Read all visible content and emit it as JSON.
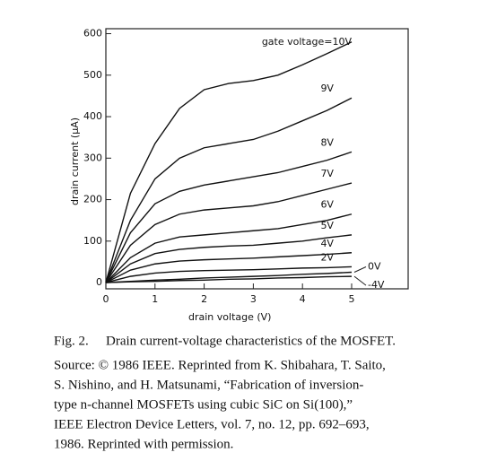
{
  "chart_data": {
    "type": "line",
    "x_label": "drain voltage (V)",
    "y_label": "drain current (μA)",
    "x": [
      0,
      0.5,
      1,
      1.5,
      2,
      2.5,
      3,
      3.5,
      4,
      4.5,
      5
    ],
    "xlim": [
      0,
      6.15
    ],
    "xticks": [
      0,
      1,
      2,
      3,
      4,
      5
    ],
    "ylim": [
      -15,
      612
    ],
    "yticks": [
      0,
      100,
      200,
      300,
      400,
      500,
      600
    ],
    "series": [
      {
        "name": "gate voltage=10V",
        "color": "#111",
        "values": [
          0,
          215,
          335,
          420,
          465,
          480,
          487,
          500,
          525,
          552,
          580
        ]
      },
      {
        "name": "9V",
        "color": "#111",
        "values": [
          0,
          150,
          250,
          300,
          325,
          335,
          345,
          365,
          390,
          415,
          445
        ]
      },
      {
        "name": "8V",
        "color": "#111",
        "values": [
          0,
          120,
          190,
          220,
          235,
          245,
          255,
          265,
          280,
          295,
          315
        ]
      },
      {
        "name": "7V",
        "color": "#111",
        "values": [
          0,
          90,
          140,
          165,
          175,
          180,
          185,
          195,
          210,
          225,
          240
        ]
      },
      {
        "name": "6V",
        "color": "#111",
        "values": [
          0,
          60,
          95,
          110,
          115,
          120,
          125,
          130,
          140,
          150,
          165
        ]
      },
      {
        "name": "5V",
        "color": "#111",
        "values": [
          0,
          45,
          70,
          80,
          85,
          88,
          90,
          95,
          100,
          108,
          115
        ]
      },
      {
        "name": "4V",
        "color": "#111",
        "values": [
          0,
          30,
          45,
          52,
          55,
          57,
          59,
          62,
          65,
          68,
          72
        ]
      },
      {
        "name": "2V",
        "color": "#111",
        "values": [
          0,
          15,
          23,
          27,
          29,
          30,
          31,
          33,
          35,
          36,
          38
        ]
      },
      {
        "name": "0V",
        "color": "#111",
        "values": [
          0,
          3,
          6,
          8,
          11,
          13,
          15,
          17,
          20,
          22,
          25
        ]
      },
      {
        "name": "-4V",
        "color": "#111",
        "values": [
          0,
          2,
          3,
          5,
          6,
          8,
          9,
          11,
          12,
          14,
          15
        ]
      }
    ]
  },
  "caption": {
    "label": "Fig. 2.",
    "text": "Drain current-voltage characteristics of the MOSFET."
  },
  "source": [
    "Source: © 1986 IEEE. Reprinted from K. Shibahara, T. Saito,",
    "S. Nishino, and H. Matsunami, “Fabrication of inversion-",
    "type n-channel MOSFETs using cubic SiC on Si(100),”",
    "IEEE Electron Device Letters, vol. 7, no. 12, pp. 692–693,",
    "1986. Reprinted with permission."
  ]
}
